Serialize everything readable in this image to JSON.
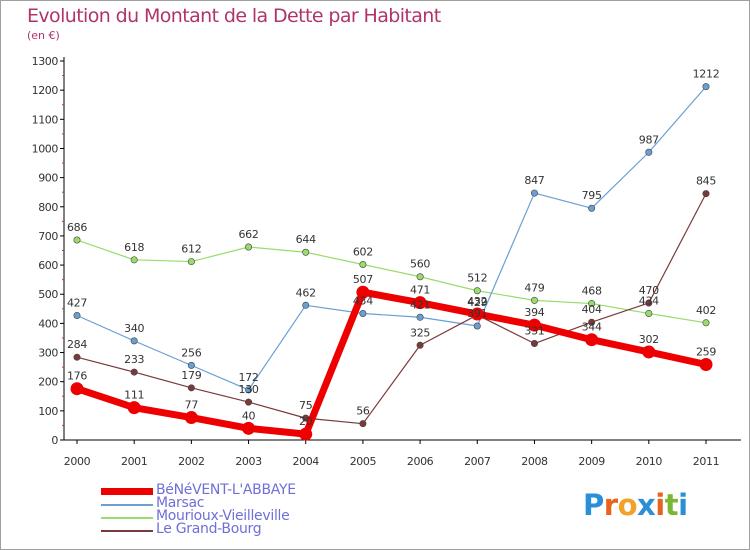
{
  "title": "Evolution du Montant de la Dette par Habitant",
  "subtitle": "(en €)",
  "brand": {
    "letters": [
      "P",
      "r",
      "o",
      "x",
      "i",
      "t",
      "i"
    ],
    "colors": [
      "#2b8fd8",
      "#e8641e",
      "#f2a12a",
      "#2b8fd8",
      "#e8641e",
      "#7ab833",
      "#2b8fd8"
    ]
  },
  "colors": {
    "title": "#b0346c",
    "axis": "#000000",
    "legend_text": "#6f6fd8"
  },
  "chart_data": {
    "type": "line",
    "x": [
      2000,
      2001,
      2002,
      2003,
      2004,
      2005,
      2006,
      2007,
      2008,
      2009,
      2010,
      2011
    ],
    "ylim": [
      0,
      1300
    ],
    "yticks": [
      0,
      100,
      200,
      300,
      400,
      500,
      600,
      700,
      800,
      900,
      1000,
      1100,
      1200,
      1300
    ],
    "grid": false,
    "legend_position": "bottom-left",
    "series": [
      {
        "name": "BéNéVENT-L'ABBAYE",
        "color": "#ee0000",
        "width": 7,
        "marker_r": 6.5,
        "values": [
          176,
          111,
          77,
          40,
          20,
          507,
          471,
          432,
          394,
          344,
          302,
          259
        ]
      },
      {
        "name": "Marsac",
        "color": "#6a9fd2",
        "width": 1.2,
        "marker_r": 3.2,
        "values": [
          427,
          340,
          256,
          172,
          462,
          434,
          421,
          391,
          847,
          795,
          987,
          1212
        ]
      },
      {
        "name": "Mourioux-Vieilleville",
        "color": "#98dc6b",
        "width": 1.2,
        "marker_r": 3.2,
        "values": [
          686,
          618,
          612,
          662,
          644,
          602,
          560,
          512,
          479,
          468,
          434,
          402
        ]
      },
      {
        "name": "Le Grand-Bourg",
        "color": "#7a3a3a",
        "width": 1.2,
        "marker_r": 3.2,
        "values": [
          284,
          233,
          179,
          130,
          75,
          56,
          325,
          429,
          331,
          404,
          470,
          845
        ]
      }
    ]
  }
}
